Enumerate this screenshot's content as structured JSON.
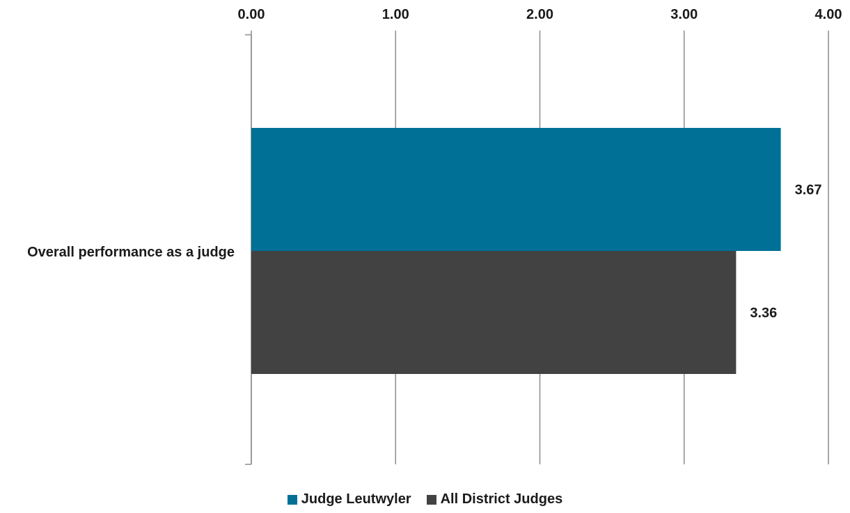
{
  "chart_data": {
    "type": "bar",
    "orientation": "horizontal",
    "categories": [
      "Overall performance as a judge"
    ],
    "series": [
      {
        "name": "Judge Leutwyler",
        "values": [
          3.67
        ],
        "color": "#007096"
      },
      {
        "name": "All District Judges",
        "values": [
          3.36
        ],
        "color": "#424242"
      }
    ],
    "xlim": [
      0,
      4
    ],
    "xticks": [
      "0.00",
      "1.00",
      "2.00",
      "3.00",
      "4.00"
    ],
    "data_labels": [
      "3.67",
      "3.36"
    ],
    "x_axis_position": "top",
    "grid": "vertical",
    "legend_placement": "bottom"
  }
}
